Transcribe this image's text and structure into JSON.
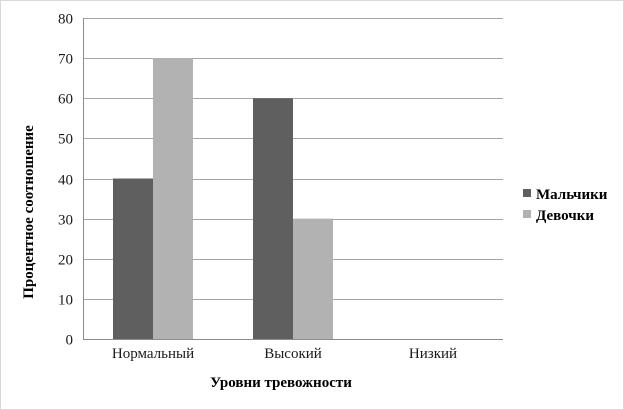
{
  "chart_data": {
    "type": "bar",
    "title": "",
    "xlabel": "Уровни тревожности",
    "ylabel": "Процентное соотношение",
    "categories": [
      "Нормальный",
      "Высокий",
      "Низкий"
    ],
    "series": [
      {
        "name": "Мальчики",
        "values": [
          40,
          60,
          0
        ],
        "color": "#5f5f5f"
      },
      {
        "name": "Девочки",
        "values": [
          70,
          30,
          0
        ],
        "color": "#b2b2b2"
      }
    ],
    "ylim": [
      0,
      80
    ],
    "yticks": [
      0,
      10,
      20,
      30,
      40,
      50,
      60,
      70,
      80
    ],
    "grid": true,
    "legend_position": "right"
  },
  "colors": {
    "gridline": "#a6a6a6",
    "axis": "#8c8c8c"
  }
}
